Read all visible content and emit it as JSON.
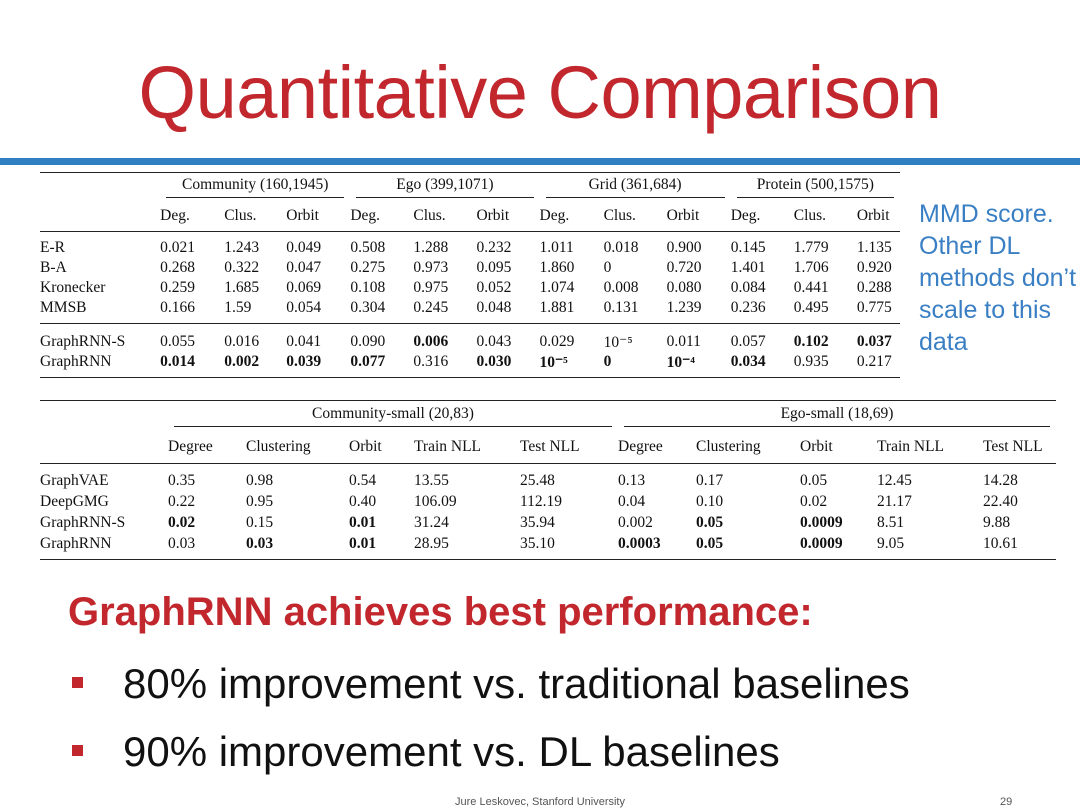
{
  "slide": {
    "title": "Quantitative Comparison",
    "side_note": "MMD score. Other DL methods don’t scale to this data",
    "headline": "GraphRNN achieves best performance:",
    "bullets": [
      "80% improvement vs. traditional baselines",
      "90% improvement vs. DL baselines"
    ],
    "footer": "Jure Leskovec, Stanford University",
    "page_number": "29",
    "colors": {
      "title": "#c1272d",
      "rule": "#2f7fc2",
      "note": "#3a7fc4",
      "bullet_square": "#c1272d"
    }
  },
  "table1": {
    "groups": [
      "Community (160,1945)",
      "Ego (399,1071)",
      "Grid (361,684)",
      "Protein (500,1575)"
    ],
    "subheaders": [
      "Deg.",
      "Clus.",
      "Orbit",
      "Deg.",
      "Clus.",
      "Orbit",
      "Deg.",
      "Clus.",
      "Orbit",
      "Deg.",
      "Clus.",
      "Orbit"
    ],
    "rows": [
      {
        "name": "E-R",
        "values": [
          "0.021",
          "1.243",
          "0.049",
          "0.508",
          "1.288",
          "0.232",
          "1.011",
          "0.018",
          "0.900",
          "0.145",
          "1.779",
          "1.135"
        ],
        "bold": []
      },
      {
        "name": "B-A",
        "values": [
          "0.268",
          "0.322",
          "0.047",
          "0.275",
          "0.973",
          "0.095",
          "1.860",
          "0",
          "0.720",
          "1.401",
          "1.706",
          "0.920"
        ],
        "bold": []
      },
      {
        "name": "Kronecker",
        "values": [
          "0.259",
          "1.685",
          "0.069",
          "0.108",
          "0.975",
          "0.052",
          "1.074",
          "0.008",
          "0.080",
          "0.084",
          "0.441",
          "0.288"
        ],
        "bold": []
      },
      {
        "name": "MMSB",
        "values": [
          "0.166",
          "1.59",
          "0.054",
          "0.304",
          "0.245",
          "0.048",
          "1.881",
          "0.131",
          "1.239",
          "0.236",
          "0.495",
          "0.775"
        ],
        "bold": []
      },
      {
        "name": "GraphRNN-S",
        "values": [
          "0.055",
          "0.016",
          "0.041",
          "0.090",
          "0.006",
          "0.043",
          "0.029",
          "10⁻⁵",
          "0.011",
          "0.057",
          "0.102",
          "0.037"
        ],
        "bold": [
          4,
          10,
          11
        ]
      },
      {
        "name": "GraphRNN",
        "values": [
          "0.014",
          "0.002",
          "0.039",
          "0.077",
          "0.316",
          "0.030",
          "10⁻⁵",
          "0",
          "10⁻⁴",
          "0.034",
          "0.935",
          "0.217"
        ],
        "bold": [
          0,
          1,
          2,
          3,
          5,
          6,
          7,
          8,
          9
        ]
      }
    ]
  },
  "table2": {
    "groups": [
      "Community-small (20,83)",
      "Ego-small (18,69)"
    ],
    "subheaders": [
      "Degree",
      "Clustering",
      "Orbit",
      "Train NLL",
      "Test NLL",
      "Degree",
      "Clustering",
      "Orbit",
      "Train NLL",
      "Test NLL"
    ],
    "rows": [
      {
        "name": "GraphVAE",
        "values": [
          "0.35",
          "0.98",
          "0.54",
          "13.55",
          "25.48",
          "0.13",
          "0.17",
          "0.05",
          "12.45",
          "14.28"
        ],
        "bold": []
      },
      {
        "name": "DeepGMG",
        "values": [
          "0.22",
          "0.95",
          "0.40",
          "106.09",
          "112.19",
          "0.04",
          "0.10",
          "0.02",
          "21.17",
          "22.40"
        ],
        "bold": []
      },
      {
        "name": "GraphRNN-S",
        "values": [
          "0.02",
          "0.15",
          "0.01",
          "31.24",
          "35.94",
          "0.002",
          "0.05",
          "0.0009",
          "8.51",
          "9.88"
        ],
        "bold": [
          0,
          2,
          6,
          7
        ]
      },
      {
        "name": "GraphRNN",
        "values": [
          "0.03",
          "0.03",
          "0.01",
          "28.95",
          "35.10",
          "0.0003",
          "0.05",
          "0.0009",
          "9.05",
          "10.61"
        ],
        "bold": [
          1,
          2,
          5,
          6,
          7
        ]
      }
    ]
  }
}
